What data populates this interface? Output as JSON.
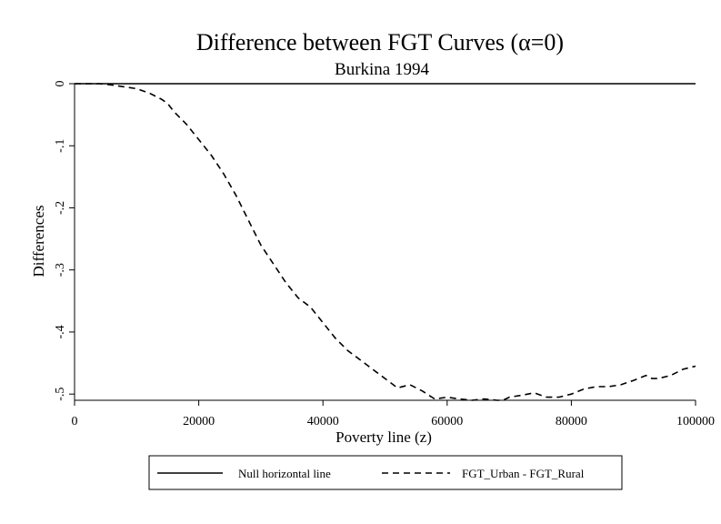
{
  "chart_data": {
    "type": "line",
    "title": "Difference between FGT Curves (α=0)",
    "subtitle": "Burkina 1994",
    "xlabel": "Poverty line (z)",
    "ylabel": "Differences",
    "xlim": [
      0,
      100000
    ],
    "ylim": [
      -0.51,
      0
    ],
    "xticks": [
      0,
      20000,
      40000,
      60000,
      80000,
      100000
    ],
    "xtick_labels": [
      "0",
      "20000",
      "40000",
      "60000",
      "80000",
      "100000"
    ],
    "yticks": [
      0,
      -0.1,
      -0.2,
      -0.3,
      -0.4,
      -0.5
    ],
    "ytick_labels": [
      "0",
      "-.1",
      "-.2",
      "-.3",
      "-.4",
      "-.5"
    ],
    "grid": false,
    "legend_position": "bottom",
    "series": [
      {
        "name": "Null horizontal line",
        "style": "solid",
        "color": "#000000",
        "x": [
          0,
          100000
        ],
        "y": [
          0,
          0
        ]
      },
      {
        "name": "FGT_Urban - FGT_Rural",
        "style": "dashed",
        "color": "#000000",
        "x": [
          0,
          2000,
          4000,
          6000,
          8000,
          10000,
          12000,
          14000,
          15000,
          16000,
          18000,
          20000,
          22000,
          24000,
          26000,
          28000,
          30000,
          32000,
          34000,
          36000,
          38000,
          40000,
          42000,
          44000,
          46000,
          48000,
          50000,
          52000,
          54000,
          56000,
          58000,
          60000,
          62000,
          64000,
          66000,
          68000,
          69000,
          70000,
          72000,
          74000,
          76000,
          78000,
          80000,
          82000,
          84000,
          86000,
          88000,
          90000,
          92000,
          93000,
          94000,
          96000,
          98000,
          100000
        ],
        "y": [
          0,
          0,
          0,
          -0.002,
          -0.005,
          -0.008,
          -0.015,
          -0.025,
          -0.032,
          -0.045,
          -0.065,
          -0.09,
          -0.115,
          -0.145,
          -0.18,
          -0.22,
          -0.26,
          -0.29,
          -0.32,
          -0.345,
          -0.36,
          -0.385,
          -0.41,
          -0.43,
          -0.445,
          -0.46,
          -0.475,
          -0.49,
          -0.485,
          -0.495,
          -0.508,
          -0.505,
          -0.508,
          -0.51,
          -0.508,
          -0.51,
          -0.51,
          -0.505,
          -0.502,
          -0.498,
          -0.505,
          -0.505,
          -0.5,
          -0.492,
          -0.488,
          -0.488,
          -0.485,
          -0.478,
          -0.47,
          -0.475,
          -0.475,
          -0.47,
          -0.46,
          -0.455
        ]
      }
    ]
  }
}
